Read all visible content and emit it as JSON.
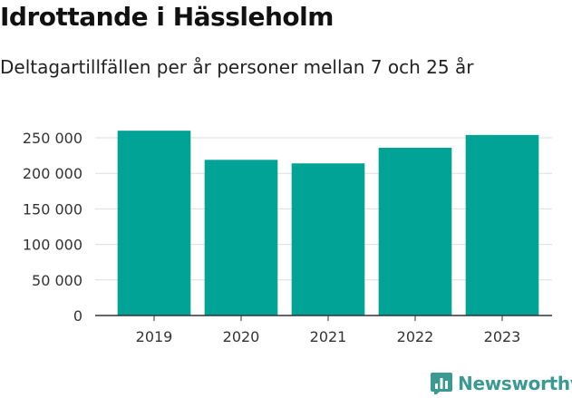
{
  "title": "Idrottande i Hässleholm",
  "subtitle": "Deltagartillfällen per år personer mellan 7 och 25 år",
  "brand": {
    "name": "Newsworthy",
    "color": "#3a9a92",
    "icon": "bar-chart-logo-icon"
  },
  "chart_data": {
    "type": "bar",
    "title": "Idrottande i Hässleholm",
    "subtitle": "Deltagartillfällen per år personer mellan 7 och 25 år",
    "xlabel": "",
    "ylabel": "",
    "categories": [
      "2019",
      "2020",
      "2021",
      "2022",
      "2023"
    ],
    "values": [
      260000,
      219000,
      214000,
      236000,
      254000
    ],
    "ylim": [
      0,
      250000
    ],
    "yticks": [
      0,
      50000,
      100000,
      150000,
      200000,
      250000
    ],
    "ytick_labels": [
      "0",
      "50 000",
      "100 000",
      "150 000",
      "200 000",
      "250 000"
    ],
    "grid": true,
    "bar_color": "#00a396"
  }
}
